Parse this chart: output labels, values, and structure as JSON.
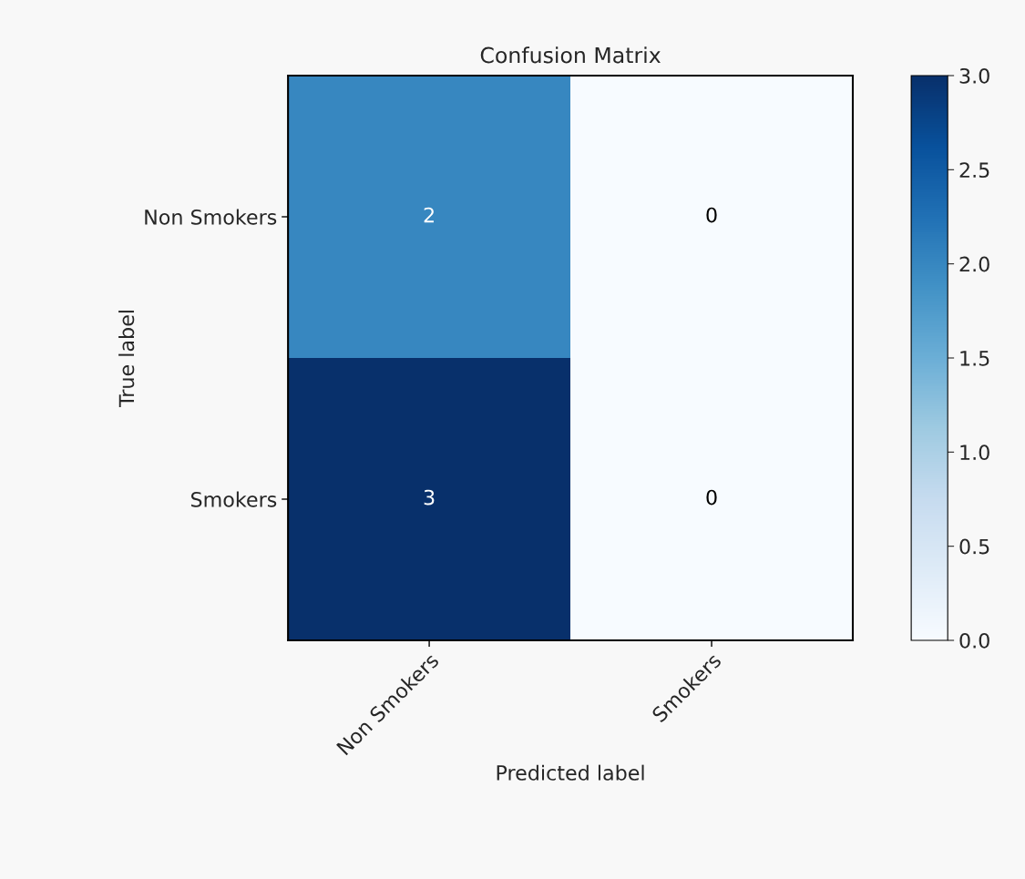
{
  "chart_data": {
    "type": "heatmap",
    "title": "Confusion Matrix",
    "xlabel": "Predicted label",
    "ylabel": "True label",
    "categories": [
      "Non Smokers",
      "Smokers"
    ],
    "y_categories": [
      "Non Smokers",
      "Smokers"
    ],
    "cells": [
      [
        2,
        0
      ],
      [
        3,
        0
      ]
    ],
    "clim": [
      0,
      3
    ],
    "cticks": [
      {
        "value": 0,
        "label": "0.0"
      },
      {
        "value": 0.5,
        "label": "0.5"
      },
      {
        "value": 1,
        "label": "1.0"
      },
      {
        "value": 1.5,
        "label": "1.5"
      },
      {
        "value": 2,
        "label": "2.0"
      },
      {
        "value": 2.5,
        "label": "2.5"
      },
      {
        "value": 3,
        "label": "3.0"
      }
    ],
    "data_labels": true
  }
}
